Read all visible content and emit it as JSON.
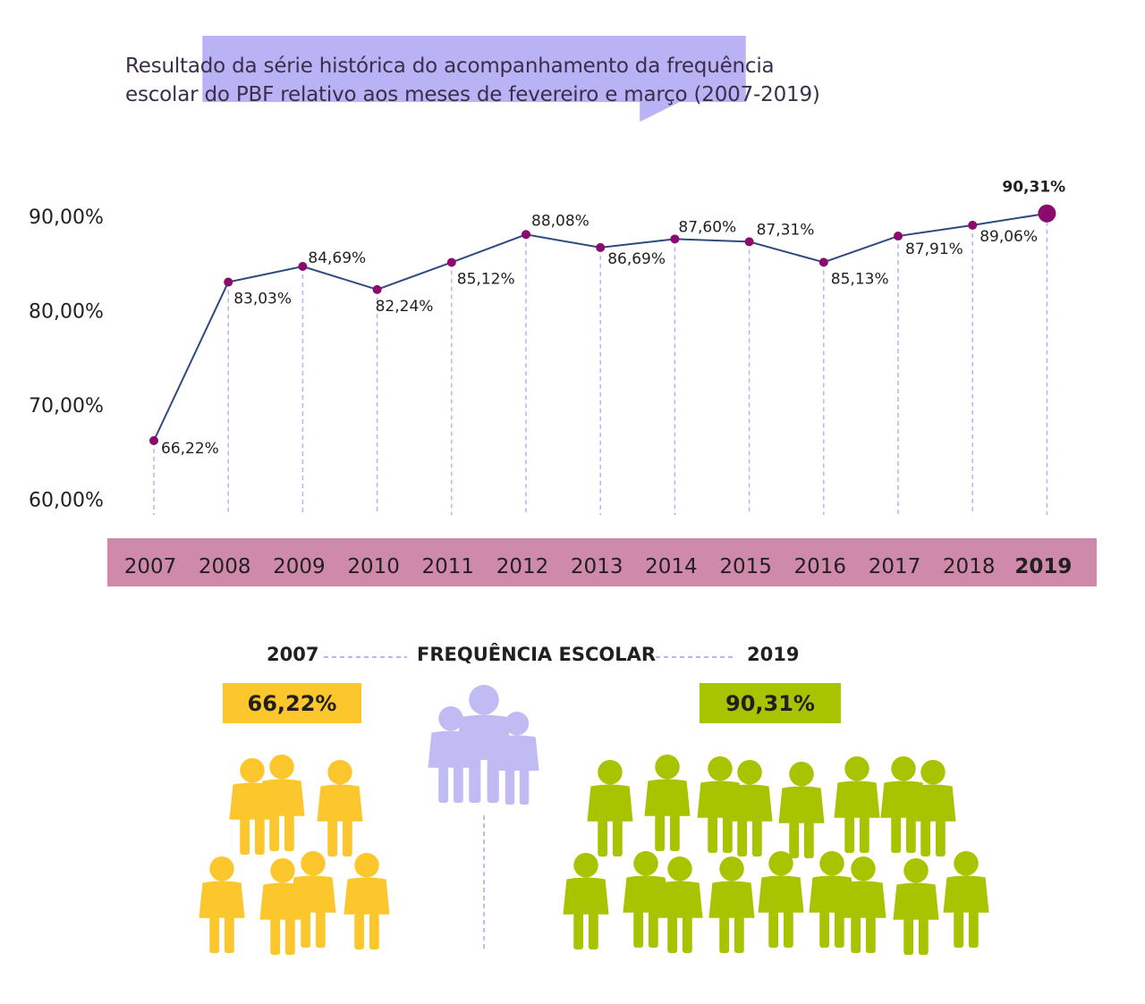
{
  "title": "Resultado da série histórica do acompanhamento da frequência escolar do PBF relativo aos meses de fevereiro e março (2007-2019)",
  "colors": {
    "bubble": "#b9b2f5",
    "line": "#2e4a7e",
    "point": "#8b0a6e",
    "year_bar": "#cf8aab",
    "guide": "#b9b2f5",
    "yellow": "#fcc72c",
    "lilac": "#c1bbf4",
    "green": "#a8c400"
  },
  "chart_data": {
    "type": "line",
    "x": [
      "2007",
      "2008",
      "2009",
      "2010",
      "2011",
      "2012",
      "2013",
      "2014",
      "2015",
      "2016",
      "2017",
      "2018",
      "2019"
    ],
    "values": [
      66.22,
      83.03,
      84.69,
      82.24,
      85.12,
      88.08,
      86.69,
      87.6,
      87.31,
      85.13,
      87.91,
      89.06,
      90.31
    ],
    "data_labels": [
      "66,22%",
      "83,03%",
      "84,69%",
      "82,24%",
      "85,12%",
      "88,08%",
      "86,69%",
      "87,60%",
      "87,31%",
      "85,13%",
      "87,91%",
      "89,06%",
      "90,31%"
    ],
    "yticks": [
      "90,00%",
      "80,00%",
      "70,00%",
      "60,00%"
    ],
    "ytick_values": [
      90,
      80,
      70,
      60
    ],
    "ylim": [
      60,
      90
    ]
  },
  "bottom": {
    "label_left": "2007",
    "label_center": "FREQUÊNCIA ESCOLAR",
    "label_right": "2019",
    "value_left": "66,22%",
    "value_right": "90,31%",
    "icons": {
      "left": "people-group-yellow-icon",
      "center": "family-icon",
      "right": "people-group-green-icon"
    }
  }
}
